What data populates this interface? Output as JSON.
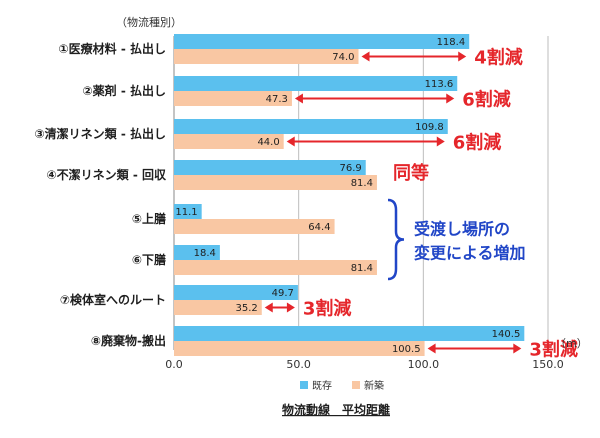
{
  "chart_data": {
    "type": "bar",
    "orientation": "horizontal",
    "title": "物流動線　平均距離",
    "category_axis_label": "（物流種別）",
    "unit_label": "（m）",
    "categories": [
      "①医療材料 - 払出し",
      "②薬剤 - 払出し",
      "③清潔リネン類 - 払出し",
      "④不潔リネン類 - 回収",
      "⑤上膳",
      "⑥下膳",
      "⑦検体室へのルート",
      "⑧廃棄物-搬出"
    ],
    "series": [
      {
        "name": "既存",
        "color": "#5BC0EE",
        "values": [
          118.4,
          113.6,
          109.8,
          76.9,
          11.1,
          18.4,
          49.7,
          140.5
        ]
      },
      {
        "name": "新築",
        "color": "#F9C7A3",
        "values": [
          74.0,
          47.3,
          44.0,
          81.4,
          64.4,
          81.4,
          35.2,
          100.5
        ]
      }
    ],
    "value_labels": {
      "既存": [
        "118.4",
        "113.6",
        "109.8",
        "76.9",
        "11.1",
        "18.4",
        "49.7",
        "140.5"
      ],
      "新築": [
        "74.0",
        "47.3",
        "44.0",
        "81.4",
        "64.4",
        "81.4",
        "35.2",
        "100.5"
      ]
    },
    "xlim": [
      0,
      150
    ],
    "ticks": [
      0,
      50,
      100,
      150
    ],
    "tick_labels": [
      "0.0",
      "50.0",
      "100.0",
      "150.0"
    ],
    "grid": true,
    "legend_position": "bottom",
    "annotations": [
      {
        "text": "4割減",
        "category_index": 0,
        "kind": "arrow"
      },
      {
        "text": "6割減",
        "category_index": 1,
        "kind": "arrow"
      },
      {
        "text": "6割減",
        "category_index": 2,
        "kind": "arrow"
      },
      {
        "text": "同等",
        "category_index": 3,
        "kind": "text"
      },
      {
        "text": "3割減",
        "category_index": 6,
        "kind": "arrow"
      },
      {
        "text": "3割減",
        "category_index": 7,
        "kind": "arrow"
      }
    ],
    "bracket_note": {
      "lines": [
        "受渡し場所の",
        "変更による増加"
      ],
      "covers": [
        4,
        5
      ]
    },
    "annotation_color": "#E5262B",
    "bracket_color": "#2146C7",
    "label_color": "#1F1F1F"
  }
}
